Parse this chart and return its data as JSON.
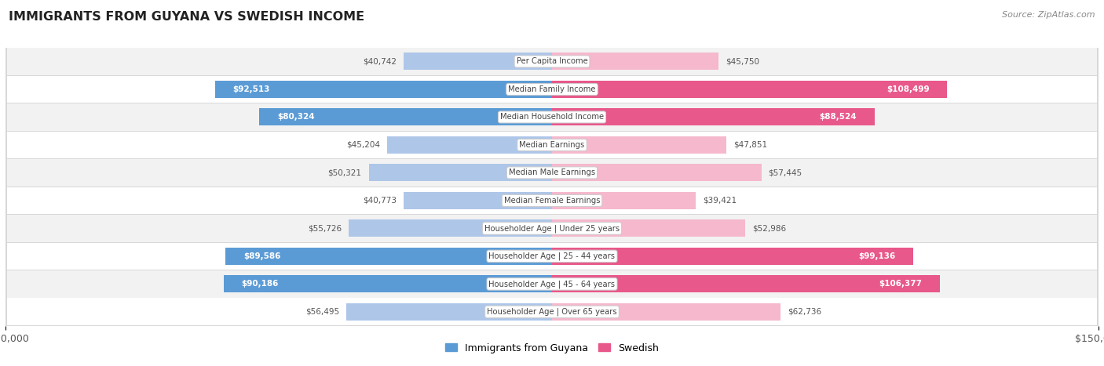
{
  "title": "IMMIGRANTS FROM GUYANA VS SWEDISH INCOME",
  "source": "Source: ZipAtlas.com",
  "categories": [
    "Per Capita Income",
    "Median Family Income",
    "Median Household Income",
    "Median Earnings",
    "Median Male Earnings",
    "Median Female Earnings",
    "Householder Age | Under 25 years",
    "Householder Age | 25 - 44 years",
    "Householder Age | 45 - 64 years",
    "Householder Age | Over 65 years"
  ],
  "guyana_values": [
    40742,
    92513,
    80324,
    45204,
    50321,
    40773,
    55726,
    89586,
    90186,
    56495
  ],
  "swedish_values": [
    45750,
    108499,
    88524,
    47851,
    57445,
    39421,
    52986,
    99136,
    106377,
    62736
  ],
  "guyana_labels": [
    "$40,742",
    "$92,513",
    "$80,324",
    "$45,204",
    "$50,321",
    "$40,773",
    "$55,726",
    "$89,586",
    "$90,186",
    "$56,495"
  ],
  "swedish_labels": [
    "$45,750",
    "$108,499",
    "$88,524",
    "$47,851",
    "$57,445",
    "$39,421",
    "$52,986",
    "$99,136",
    "$106,377",
    "$62,736"
  ],
  "guyana_color_light": "#aec6e8",
  "guyana_color_dark": "#5b9bd5",
  "swedish_color_light": "#f5b8cc",
  "swedish_color_dark": "#e8588a",
  "max_value": 150000,
  "bg_color": "#ffffff",
  "row_bg_even": "#f2f2f2",
  "row_bg_odd": "#ffffff",
  "row_border": "#d8d8d8",
  "guyana_dark_threshold": 75000,
  "swedish_dark_threshold": 75000,
  "label_outside_color": "#555555",
  "label_inside_color": "#ffffff",
  "center_label_color": "#444444",
  "center_label_bg": "#ffffff",
  "center_label_border": "#cccccc"
}
